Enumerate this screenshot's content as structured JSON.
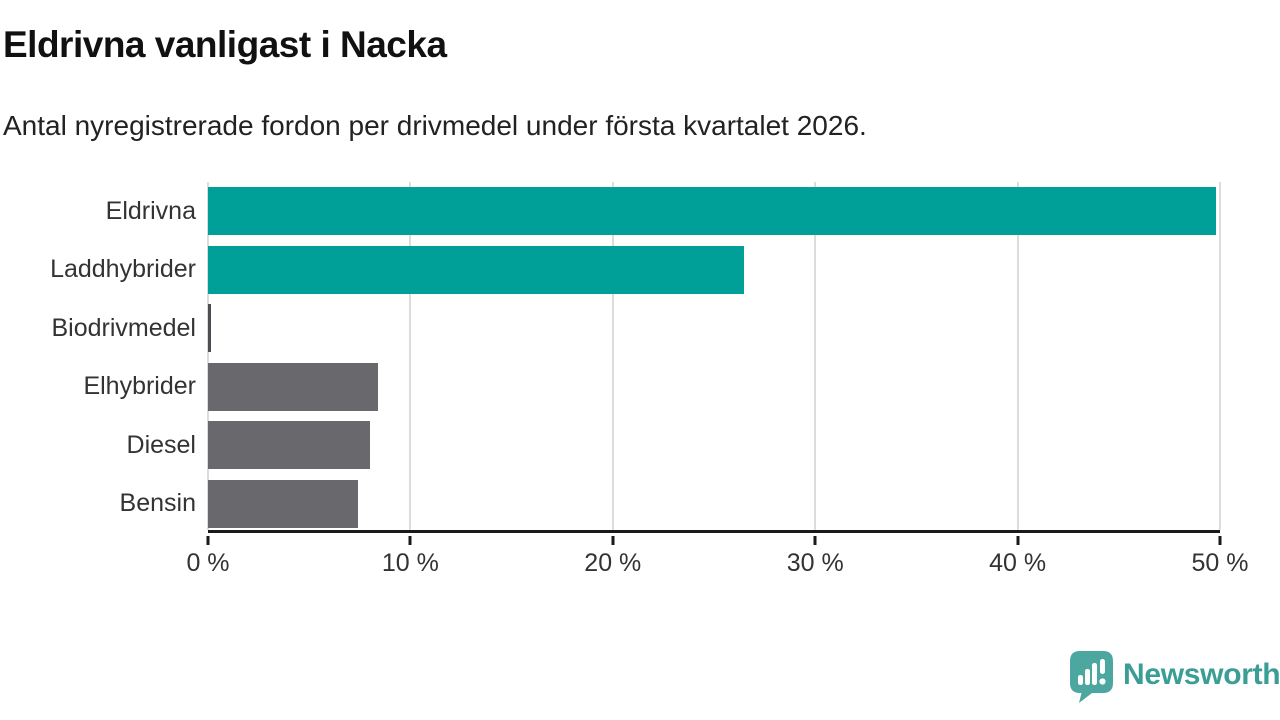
{
  "chart_data": {
    "type": "bar",
    "orientation": "horizontal",
    "title": "Eldrivna vanligast i Nacka",
    "subtitle": "Antal nyregistrerade fordon per drivmedel under första kvartalet 2026.",
    "categories": [
      "Eldrivna",
      "Laddhybrider",
      "Biodrivmedel",
      "Elhybrider",
      "Diesel",
      "Bensin"
    ],
    "values": [
      49.8,
      26.5,
      0.15,
      8.4,
      8.0,
      7.4
    ],
    "unit": "%",
    "xlim": [
      0,
      50
    ],
    "xticks": [
      0,
      10,
      20,
      30,
      40,
      50
    ],
    "xtick_labels": [
      "0 %",
      "10 %",
      "20 %",
      "30 %",
      "40 %",
      "50 %"
    ],
    "bar_colors": [
      "#00A099",
      "#00A099",
      "#4D4D52",
      "#68686D",
      "#68686D",
      "#68686D"
    ],
    "highlight_color": "#00A099",
    "default_color": "#68686D",
    "grid": true,
    "legend": "none"
  },
  "footer": {
    "brand": "Newsworthy",
    "logo_color": "#4BA79F",
    "brand_text_color": "#3B9E96"
  }
}
